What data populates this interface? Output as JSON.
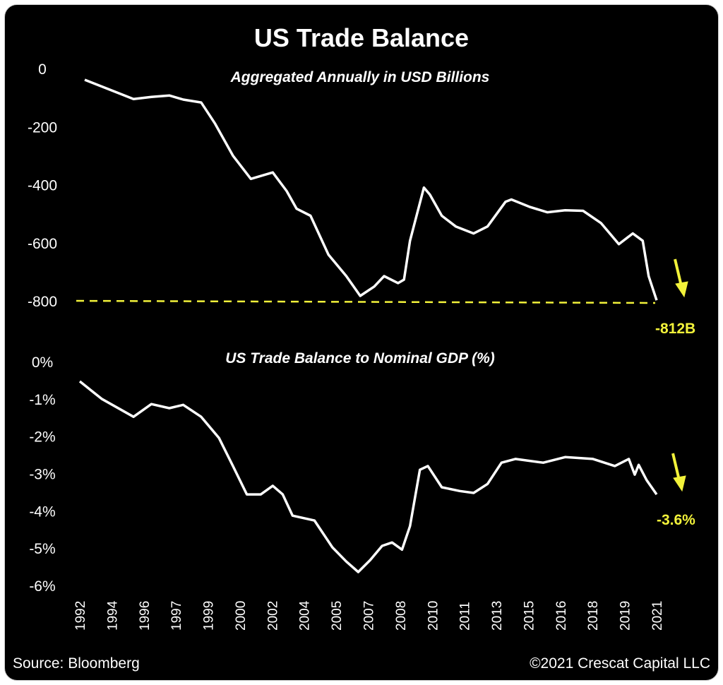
{
  "chart_data": [
    {
      "type": "line",
      "title": "US Trade Balance",
      "subtitle": "Aggregated Annually in USD Billions",
      "ylim": [
        -800,
        0
      ],
      "yticks": [
        0,
        -200,
        -400,
        -600,
        -800
      ],
      "ytick_labels": [
        "0",
        "-200",
        "-400",
        "-600",
        "-800"
      ],
      "reference_line": -800,
      "annotation": "-812B",
      "series": [
        {
          "name": "US Trade Balance (USD Billions)",
          "x": [
            1992.25,
            1994.7,
            1995.6,
            1996.5,
            1997.2,
            1998.1,
            1998.8,
            1999.7,
            2000.6,
            2001.7,
            2002.4,
            2002.9,
            2003.6,
            2004.5,
            2005.4,
            2006.1,
            2006.8,
            2007.3,
            2008.0,
            2008.3,
            2008.6,
            2009.3,
            2009.6,
            2010.2,
            2010.9,
            2011.8,
            2012.5,
            2013.4,
            2013.7,
            2014.6,
            2015.5,
            2016.4,
            2017.3,
            2018.2,
            2019.1,
            2019.8,
            2020.3,
            2020.6,
            2021.0
          ],
          "y": [
            -39,
            -105,
            -98,
            -93,
            -107,
            -117,
            -190,
            -300,
            -380,
            -358,
            -422,
            -483,
            -507,
            -641,
            -715,
            -783,
            -751,
            -715,
            -739,
            -727,
            -593,
            -410,
            -434,
            -507,
            -544,
            -568,
            -544,
            -459,
            -451,
            -476,
            -495,
            -488,
            -490,
            -532,
            -605,
            -568,
            -593,
            -715,
            -798
          ]
        }
      ]
    },
    {
      "type": "line",
      "subtitle": "US Trade Balance to Nominal GDP (%)",
      "ylim": [
        -6,
        0
      ],
      "yticks": [
        0,
        -1,
        -2,
        -3,
        -4,
        -5,
        -6
      ],
      "ytick_labels": [
        "0%",
        "-1%",
        "-2%",
        "-3%",
        "-4%",
        "-5%",
        "-6%"
      ],
      "annotation": "-3.6%",
      "series": [
        {
          "name": "US Trade Balance to Nominal GDP (%)",
          "x": [
            1992,
            1993.1,
            1994.7,
            1995.6,
            1996.5,
            1997.2,
            1998.1,
            1999.0,
            1999.7,
            2000.4,
            2001.1,
            2001.7,
            2002.2,
            2002.7,
            2003.8,
            2004.7,
            2005.4,
            2006.0,
            2006.6,
            2007.2,
            2007.7,
            2008.2,
            2008.6,
            2009.1,
            2009.5,
            2010.2,
            2011.1,
            2011.8,
            2012.5,
            2013.2,
            2013.9,
            2015.3,
            2016.4,
            2017.8,
            2018.9,
            2019.6,
            2019.9,
            2020.1,
            2020.5,
            2021.0
          ],
          "y": [
            -0.53,
            -1.0,
            -1.48,
            -1.14,
            -1.25,
            -1.16,
            -1.48,
            -2.05,
            -2.8,
            -3.56,
            -3.56,
            -3.33,
            -3.56,
            -4.13,
            -4.26,
            -4.98,
            -5.36,
            -5.64,
            -5.32,
            -4.94,
            -4.85,
            -5.04,
            -4.41,
            -2.9,
            -2.8,
            -3.37,
            -3.47,
            -3.52,
            -3.28,
            -2.71,
            -2.61,
            -2.71,
            -2.56,
            -2.61,
            -2.8,
            -2.61,
            -3.03,
            -2.77,
            -3.18,
            -3.56
          ]
        }
      ]
    }
  ],
  "xaxis": {
    "range": [
      1992,
      2021
    ],
    "tick_labels": [
      "1992",
      "1994",
      "1996",
      "1997",
      "1999",
      "2000",
      "2002",
      "2004",
      "2005",
      "2007",
      "2008",
      "2010",
      "2011",
      "2013",
      "2015",
      "2016",
      "2018",
      "2019",
      "2021"
    ]
  },
  "footer": {
    "source": "Source: Bloomberg",
    "copyright": "©2021 Crescat Capital LLC"
  },
  "colors": {
    "line": "#ffffff",
    "accent": "#f2f23a",
    "background": "#000000"
  }
}
